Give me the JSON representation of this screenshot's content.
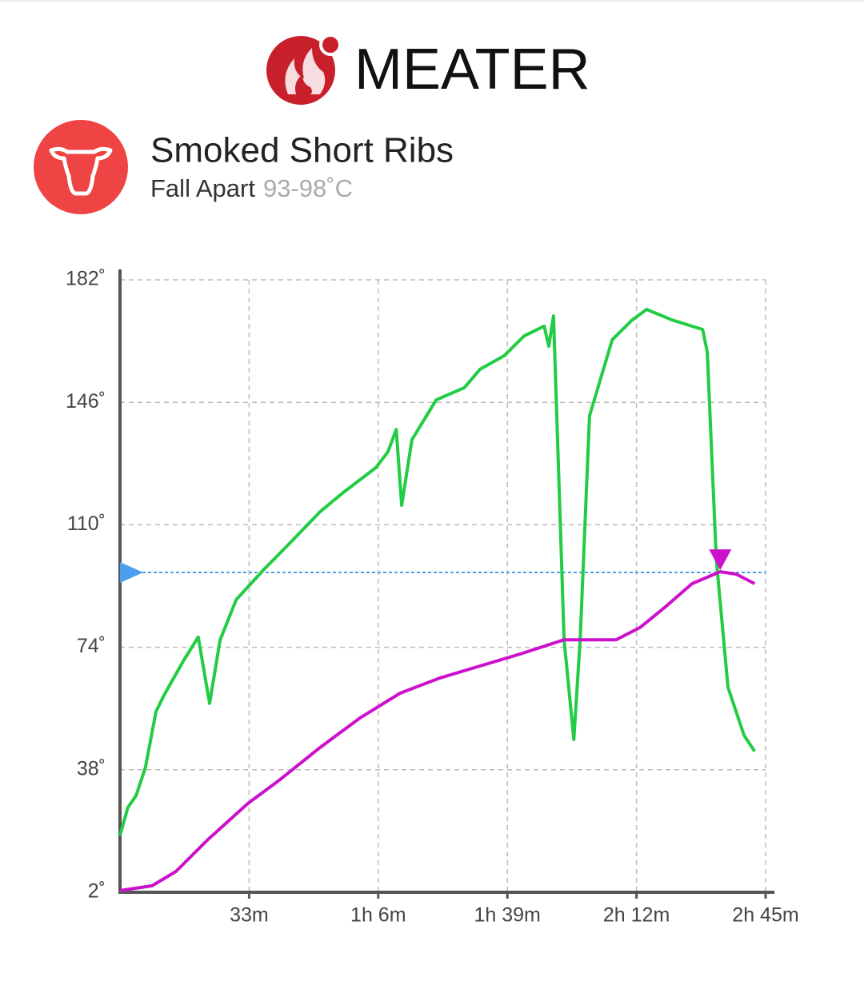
{
  "chart_data": {
    "type": "line",
    "brand": "MEATER",
    "title": "Smoked Short Ribs",
    "subtitle": "Fall Apart",
    "target_range": "93-98˚C",
    "target": 96,
    "target_color": "#4a9ff0",
    "xlim": [
      0,
      165
    ],
    "xticks": [
      {
        "value": 33,
        "label": "33m"
      },
      {
        "value": 66,
        "label": "1h 6m"
      },
      {
        "value": 99,
        "label": "1h 39m"
      },
      {
        "value": 132,
        "label": "2h 12m"
      },
      {
        "value": 165,
        "label": "2h 45m"
      }
    ],
    "ylim": [
      2,
      182
    ],
    "yticks": [
      {
        "value": 2,
        "label": "2˚"
      },
      {
        "value": 38,
        "label": "38˚"
      },
      {
        "value": 74,
        "label": "74˚"
      },
      {
        "value": 110,
        "label": "110˚"
      },
      {
        "value": 146,
        "label": "146˚"
      },
      {
        "value": 182,
        "label": "182˚"
      }
    ],
    "grid": true,
    "series": [
      {
        "color": "#22cc44",
        "x": [
          0,
          2,
          4.1,
          6.5,
          9.2,
          11.2,
          16.4,
          20,
          22.9,
          25.6,
          29.7,
          36.8,
          42.9,
          51.1,
          57.3,
          65.4,
          68.5,
          70.6,
          72,
          74.6,
          80.8,
          88,
          92,
          98.2,
          103.3,
          108.4,
          109.6,
          110.8,
          113.5,
          116,
          117.6,
          120,
          125.8,
          130.9,
          134.6,
          141.1,
          148.9,
          150.1,
          152.4,
          155.4,
          159.5,
          162.2
        ],
        "values": [
          18.7,
          26.9,
          30.4,
          38.7,
          55.1,
          59.8,
          70.4,
          77,
          57.5,
          76.2,
          88,
          96.9,
          104,
          113.8,
          119.7,
          126.8,
          131.5,
          138,
          115.7,
          135,
          146.7,
          150.3,
          155.7,
          159.7,
          165.5,
          168.4,
          162.5,
          171.4,
          76.2,
          46.9,
          76.2,
          142,
          164.4,
          170.2,
          173.3,
          170.2,
          167.4,
          160.8,
          99.7,
          62.2,
          48.1,
          43.4
        ]
      },
      {
        "color": "#cc11cc",
        "x": [
          0,
          8.2,
          14.3,
          22.5,
          32.7,
          40.9,
          51.1,
          61.3,
          71.6,
          81.8,
          92,
          102.2,
          113.5,
          120.7,
          126.8,
          132.9,
          139.1,
          146.2,
          153.4,
          157.5,
          162.2
        ],
        "values": [
          2.5,
          3.9,
          8.1,
          17.5,
          28.1,
          35.1,
          44.5,
          53.2,
          60.5,
          65,
          68.5,
          72,
          76.2,
          76.2,
          76.2,
          79.8,
          85.6,
          92.7,
          96.2,
          95.5,
          92.7
        ]
      }
    ]
  }
}
